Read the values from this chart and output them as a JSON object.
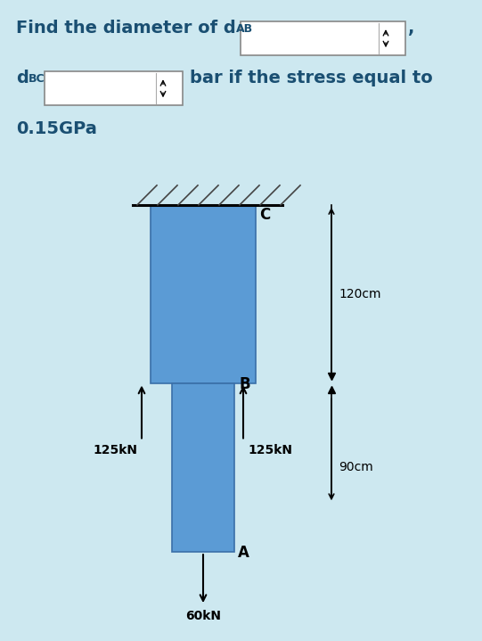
{
  "bg_color": "#cde8f0",
  "diagram_bg": "#ffffff",
  "bar_color": "#5b9bd5",
  "text_color": "#1a4f72",
  "label_C": "C",
  "label_B": "B",
  "label_A": "A",
  "dim_120": "120cm",
  "dim_90": "90cm",
  "force_125L": "125kN",
  "force_125R": "125kN",
  "force_60": "60kN",
  "line1_main": "Find the diameter of d",
  "line1_sub": "AB",
  "line2_d": "d",
  "line2_sub": "BC",
  "line2_rest": "bar if the stress equal to",
  "line3": "0.15GPa"
}
